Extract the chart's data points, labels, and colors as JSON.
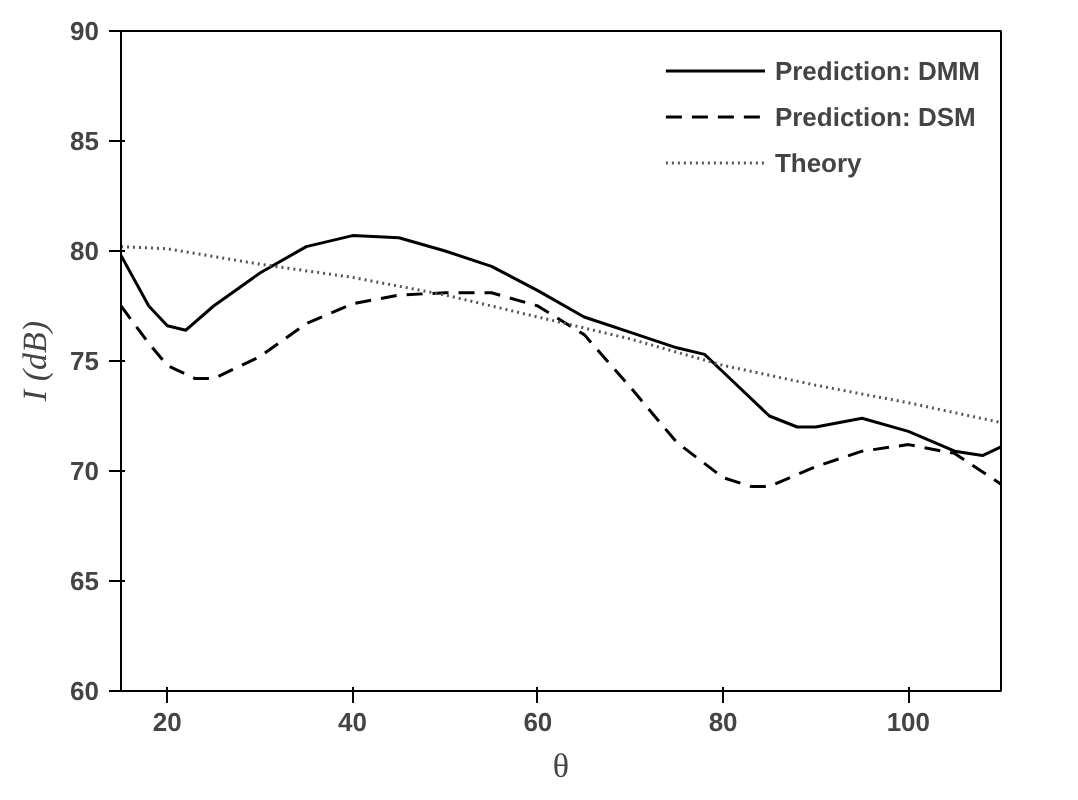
{
  "chart_data": {
    "type": "line",
    "xlabel": "θ",
    "ylabel": "I (dB)",
    "xlim": [
      15,
      110
    ],
    "ylim": [
      60,
      90
    ],
    "xticks": [
      20,
      40,
      60,
      80,
      100
    ],
    "yticks": [
      60,
      65,
      70,
      75,
      80,
      85,
      90
    ],
    "grid": false,
    "legend": "top right",
    "marker": "none",
    "series": [
      {
        "name": "Prediction: DMM",
        "color": "#000000",
        "line_style": "solid",
        "x": [
          15,
          18,
          20,
          22,
          25,
          30,
          35,
          40,
          45,
          50,
          55,
          60,
          65,
          70,
          75,
          78,
          80,
          85,
          88,
          90,
          95,
          100,
          105,
          108,
          110
        ],
        "values": [
          79.8,
          77.5,
          76.6,
          76.4,
          77.5,
          79.0,
          80.2,
          80.7,
          80.6,
          80.0,
          79.3,
          78.2,
          77.0,
          76.3,
          75.6,
          75.3,
          74.5,
          72.5,
          72.0,
          72.0,
          72.4,
          71.8,
          70.9,
          70.7,
          71.1
        ]
      },
      {
        "name": "Prediction: DSM",
        "color": "#000000",
        "line_style": "dashed",
        "x": [
          15,
          18,
          20,
          23,
          25,
          30,
          35,
          40,
          45,
          50,
          55,
          60,
          65,
          70,
          75,
          80,
          83,
          85,
          90,
          95,
          100,
          105,
          110
        ],
        "values": [
          77.5,
          75.8,
          74.8,
          74.2,
          74.2,
          75.2,
          76.7,
          77.6,
          78.0,
          78.1,
          78.1,
          77.5,
          76.2,
          73.8,
          71.3,
          69.7,
          69.3,
          69.3,
          70.2,
          70.9,
          71.2,
          70.8,
          69.4
        ]
      },
      {
        "name": "Theory",
        "color": "#555555",
        "line_style": "dotted",
        "x": [
          15,
          20,
          30,
          40,
          50,
          60,
          70,
          80,
          90,
          100,
          110
        ],
        "values": [
          80.2,
          80.1,
          79.4,
          78.8,
          78.0,
          77.0,
          76.0,
          74.8,
          73.9,
          73.1,
          72.2
        ]
      }
    ]
  }
}
